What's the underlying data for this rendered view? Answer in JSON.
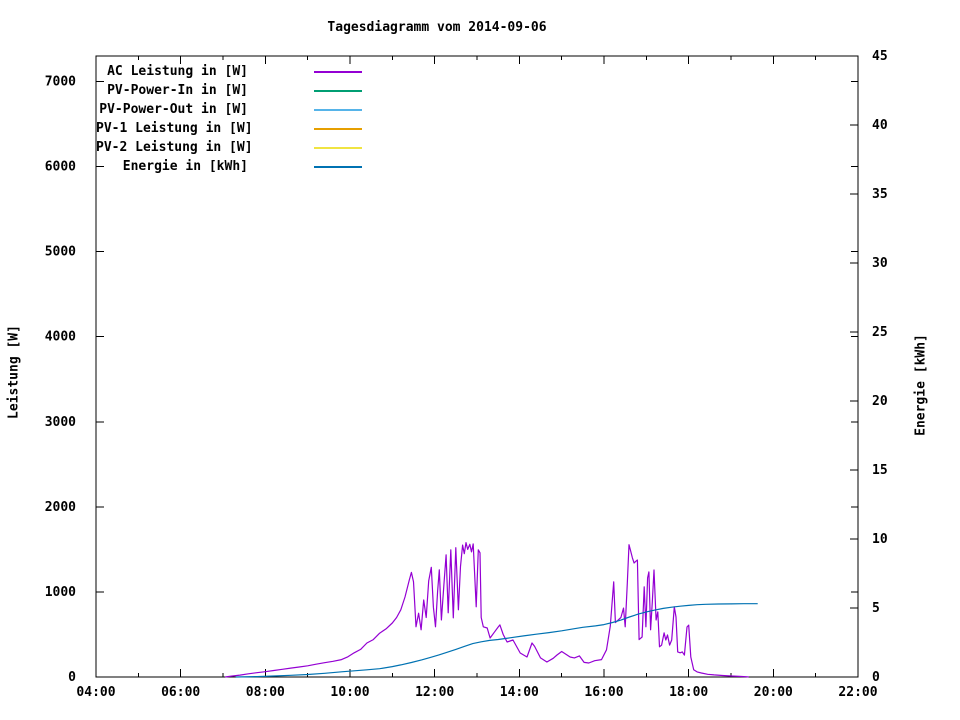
{
  "chart_data": {
    "type": "line",
    "title": "Tagesdiagramm vom 2014-09-06",
    "x_unit": "time of day (hours)",
    "grid": false,
    "legend_position": "top-left inside plot",
    "axes": {
      "x": {
        "range": [
          4,
          22
        ],
        "major_ticks": [
          4,
          6,
          8,
          10,
          12,
          14,
          16,
          18,
          20,
          22
        ],
        "tick_labels": [
          "04:00",
          "06:00",
          "08:00",
          "10:00",
          "12:00",
          "14:00",
          "16:00",
          "18:00",
          "20:00",
          "22:00"
        ],
        "minor_ticks": [
          5,
          7,
          9,
          11,
          13,
          15,
          17,
          19,
          21
        ]
      },
      "y1": {
        "label": "Leistung [W]",
        "range": [
          0,
          7300
        ],
        "ticks": [
          0,
          1000,
          2000,
          3000,
          4000,
          5000,
          6000,
          7000
        ],
        "tick_labels": [
          "0",
          "1000",
          "2000",
          "3000",
          "4000",
          "5000",
          "6000",
          "7000"
        ]
      },
      "y2": {
        "label": "Energie [kWh]",
        "range": [
          0,
          45
        ],
        "ticks": [
          0,
          5,
          10,
          15,
          20,
          25,
          30,
          35,
          40,
          45
        ],
        "tick_labels": [
          "0",
          "5",
          "10",
          "15",
          "20",
          "25",
          "30",
          "35",
          "40",
          "45"
        ]
      }
    },
    "series": [
      {
        "name": "AC Leistung in [W]",
        "axis": "y1",
        "color": "#9400D3",
        "points": [
          [
            7.05,
            0
          ],
          [
            7.2,
            10
          ],
          [
            7.4,
            22
          ],
          [
            7.6,
            38
          ],
          [
            7.8,
            50
          ],
          [
            8.0,
            62
          ],
          [
            8.2,
            76
          ],
          [
            8.4,
            90
          ],
          [
            8.6,
            105
          ],
          [
            8.8,
            118
          ],
          [
            9.0,
            132
          ],
          [
            9.2,
            150
          ],
          [
            9.4,
            168
          ],
          [
            9.6,
            185
          ],
          [
            9.8,
            205
          ],
          [
            9.95,
            238
          ],
          [
            10.1,
            285
          ],
          [
            10.25,
            325
          ],
          [
            10.4,
            400
          ],
          [
            10.55,
            440
          ],
          [
            10.7,
            515
          ],
          [
            10.85,
            565
          ],
          [
            11.0,
            635
          ],
          [
            11.1,
            700
          ],
          [
            11.2,
            790
          ],
          [
            11.3,
            940
          ],
          [
            11.4,
            1140
          ],
          [
            11.45,
            1230
          ],
          [
            11.5,
            1120
          ],
          [
            11.56,
            590
          ],
          [
            11.62,
            750
          ],
          [
            11.68,
            555
          ],
          [
            11.74,
            905
          ],
          [
            11.8,
            700
          ],
          [
            11.86,
            1130
          ],
          [
            11.92,
            1290
          ],
          [
            11.97,
            820
          ],
          [
            12.02,
            590
          ],
          [
            12.07,
            1005
          ],
          [
            12.11,
            1260
          ],
          [
            12.16,
            670
          ],
          [
            12.22,
            1100
          ],
          [
            12.27,
            1435
          ],
          [
            12.32,
            755
          ],
          [
            12.38,
            1495
          ],
          [
            12.44,
            695
          ],
          [
            12.5,
            1520
          ],
          [
            12.56,
            790
          ],
          [
            12.61,
            1300
          ],
          [
            12.66,
            1550
          ],
          [
            12.7,
            1450
          ],
          [
            12.74,
            1580
          ],
          [
            12.78,
            1500
          ],
          [
            12.83,
            1560
          ],
          [
            12.87,
            1470
          ],
          [
            12.91,
            1565
          ],
          [
            12.98,
            825
          ],
          [
            13.03,
            1495
          ],
          [
            13.07,
            1460
          ],
          [
            13.1,
            700
          ],
          [
            13.15,
            590
          ],
          [
            13.24,
            576
          ],
          [
            13.31,
            459
          ],
          [
            13.4,
            520
          ],
          [
            13.5,
            588
          ],
          [
            13.54,
            612
          ],
          [
            13.62,
            500
          ],
          [
            13.71,
            412
          ],
          [
            13.85,
            435
          ],
          [
            14.02,
            282
          ],
          [
            14.18,
            235
          ],
          [
            14.3,
            400
          ],
          [
            14.36,
            360
          ],
          [
            14.5,
            224
          ],
          [
            14.65,
            176
          ],
          [
            14.8,
            220
          ],
          [
            14.89,
            259
          ],
          [
            15.0,
            300
          ],
          [
            15.1,
            268
          ],
          [
            15.2,
            235
          ],
          [
            15.3,
            225
          ],
          [
            15.42,
            248
          ],
          [
            15.53,
            172
          ],
          [
            15.64,
            165
          ],
          [
            15.78,
            192
          ],
          [
            15.94,
            205
          ],
          [
            16.06,
            320
          ],
          [
            16.15,
            600
          ],
          [
            16.23,
            1118
          ],
          [
            16.27,
            640
          ],
          [
            16.33,
            668
          ],
          [
            16.4,
            700
          ],
          [
            16.46,
            810
          ],
          [
            16.5,
            590
          ],
          [
            16.55,
            1100
          ],
          [
            16.59,
            1555
          ],
          [
            16.63,
            1480
          ],
          [
            16.67,
            1400
          ],
          [
            16.71,
            1340
          ],
          [
            16.75,
            1360
          ],
          [
            16.79,
            1375
          ],
          [
            16.83,
            440
          ],
          [
            16.9,
            470
          ],
          [
            16.95,
            1060
          ],
          [
            16.99,
            590
          ],
          [
            17.03,
            1165
          ],
          [
            17.06,
            1235
          ],
          [
            17.1,
            555
          ],
          [
            17.14,
            880
          ],
          [
            17.18,
            1258
          ],
          [
            17.23,
            670
          ],
          [
            17.27,
            765
          ],
          [
            17.31,
            355
          ],
          [
            17.36,
            375
          ],
          [
            17.42,
            518
          ],
          [
            17.46,
            435
          ],
          [
            17.5,
            494
          ],
          [
            17.55,
            375
          ],
          [
            17.6,
            435
          ],
          [
            17.66,
            824
          ],
          [
            17.7,
            705
          ],
          [
            17.74,
            295
          ],
          [
            17.8,
            285
          ],
          [
            17.85,
            295
          ],
          [
            17.9,
            258
          ],
          [
            17.96,
            588
          ],
          [
            18.0,
            610
          ],
          [
            18.05,
            235
          ],
          [
            18.12,
            85
          ],
          [
            18.2,
            60
          ],
          [
            18.3,
            47
          ],
          [
            18.45,
            32
          ],
          [
            18.6,
            25
          ],
          [
            18.8,
            18
          ],
          [
            19.0,
            12
          ],
          [
            19.2,
            7
          ],
          [
            19.35,
            3
          ],
          [
            19.42,
            0
          ]
        ]
      },
      {
        "name": "PV-Power-In in [W]",
        "axis": "y1",
        "color": "#009E73",
        "points": []
      },
      {
        "name": "PV-Power-Out in [W]",
        "axis": "y1",
        "color": "#56B4E9",
        "points": []
      },
      {
        "name": "PV-1 Leistung in [W]",
        "axis": "y1",
        "color": "#E69F00",
        "points": []
      },
      {
        "name": "PV-2 Leistung in [W]",
        "axis": "y1",
        "color": "#F0E442",
        "points": []
      },
      {
        "name": "Energie in [kWh]",
        "axis": "y2",
        "color": "#0072B2",
        "points": [
          [
            7.3,
            0
          ],
          [
            7.8,
            0.03
          ],
          [
            8.2,
            0.07
          ],
          [
            8.6,
            0.12
          ],
          [
            9.0,
            0.18
          ],
          [
            9.4,
            0.27
          ],
          [
            9.8,
            0.38
          ],
          [
            10.1,
            0.45
          ],
          [
            10.4,
            0.52
          ],
          [
            10.7,
            0.6
          ],
          [
            11.0,
            0.75
          ],
          [
            11.2,
            0.88
          ],
          [
            11.45,
            1.05
          ],
          [
            11.7,
            1.25
          ],
          [
            11.9,
            1.42
          ],
          [
            12.1,
            1.6
          ],
          [
            12.3,
            1.8
          ],
          [
            12.5,
            2.0
          ],
          [
            12.7,
            2.22
          ],
          [
            12.9,
            2.42
          ],
          [
            13.1,
            2.55
          ],
          [
            13.3,
            2.65
          ],
          [
            13.5,
            2.72
          ],
          [
            13.8,
            2.85
          ],
          [
            14.1,
            2.98
          ],
          [
            14.4,
            3.1
          ],
          [
            14.7,
            3.22
          ],
          [
            15.0,
            3.35
          ],
          [
            15.3,
            3.5
          ],
          [
            15.5,
            3.6
          ],
          [
            15.8,
            3.7
          ],
          [
            16.0,
            3.8
          ],
          [
            16.2,
            3.95
          ],
          [
            16.4,
            4.12
          ],
          [
            16.6,
            4.35
          ],
          [
            16.8,
            4.55
          ],
          [
            17.0,
            4.72
          ],
          [
            17.2,
            4.85
          ],
          [
            17.4,
            4.97
          ],
          [
            17.6,
            5.06
          ],
          [
            17.8,
            5.13
          ],
          [
            18.0,
            5.19
          ],
          [
            18.2,
            5.24
          ],
          [
            18.4,
            5.27
          ],
          [
            18.7,
            5.29
          ],
          [
            19.0,
            5.3
          ],
          [
            19.3,
            5.31
          ],
          [
            19.63,
            5.31
          ]
        ]
      }
    ]
  }
}
